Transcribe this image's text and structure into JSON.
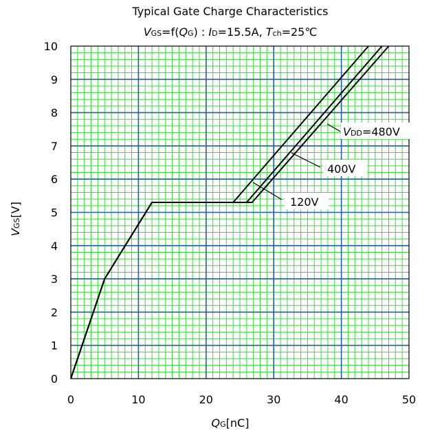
{
  "chart_data": {
    "type": "line",
    "title": "Typical Gate Charge Characteristics",
    "subtitle": {
      "v": "V",
      "v_sub": "GS",
      "eq": "=f(",
      "q": "Q",
      "q_sub": "G",
      "mid": ") : ",
      "i": "I",
      "i_sub": "D",
      "i_val": "=15.5A, ",
      "t": "T",
      "t_sub": "ch",
      "t_val": "=25℃"
    },
    "xlabel": {
      "main": "Q",
      "sub": "G",
      "unit": "[nC]"
    },
    "ylabel": {
      "main": "V",
      "sub": "GS",
      "unit": "[V]"
    },
    "xlim": [
      0,
      50
    ],
    "ylim": [
      0,
      10
    ],
    "xticks": [
      "0",
      "10",
      "20",
      "30",
      "40",
      "50"
    ],
    "yticks": [
      "0",
      "1",
      "2",
      "3",
      "4",
      "5",
      "6",
      "7",
      "8",
      "9",
      "10"
    ],
    "grid": true,
    "colors": {
      "minor_grid": "#33dd33",
      "major_grid": "#1f5faa",
      "line": "#000000"
    },
    "series": [
      {
        "name": "120V",
        "x": [
          0,
          5,
          12,
          24,
          44
        ],
        "y": [
          0,
          3,
          5.3,
          5.3,
          10
        ]
      },
      {
        "name": "400V",
        "x": [
          0,
          5,
          12,
          26,
          46
        ],
        "y": [
          0,
          3,
          5.3,
          5.3,
          10
        ]
      },
      {
        "name": "480V",
        "x": [
          0,
          5,
          12,
          26.8,
          47
        ],
        "y": [
          0,
          3,
          5.3,
          5.3,
          10
        ]
      }
    ],
    "annotations": {
      "vdd_prefix": "V",
      "vdd_sub": "DD",
      "vdd_val": "=480V",
      "v400": "400V",
      "v120": "120V"
    }
  }
}
